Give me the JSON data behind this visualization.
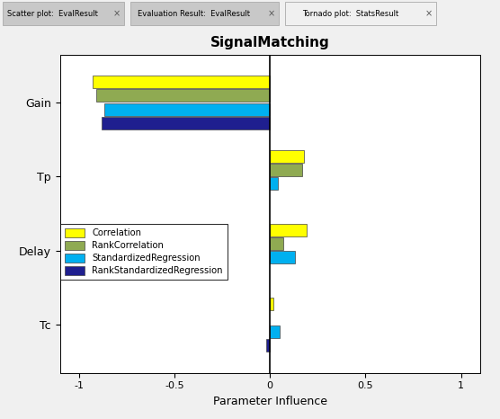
{
  "title": "SignalMatching",
  "xlabel": "Parameter Influence",
  "categories": [
    "Gain",
    "Tp",
    "Delay",
    "Tc"
  ],
  "series_order": [
    "Correlation",
    "RankCorrelation",
    "StandardizedRegression",
    "RankStandardizedRegression"
  ],
  "series": {
    "Correlation": [
      -0.93,
      0.18,
      0.19,
      0.02
    ],
    "RankCorrelation": [
      -0.91,
      0.17,
      0.07,
      0.0
    ],
    "StandardizedRegression": [
      -0.87,
      0.04,
      0.13,
      0.05
    ],
    "RankStandardizedRegression": [
      -0.88,
      0.0,
      0.0,
      -0.02
    ]
  },
  "colors": {
    "Correlation": "#ffff00",
    "RankCorrelation": "#8faa52",
    "StandardizedRegression": "#00b0f0",
    "RankStandardizedRegression": "#1f1f8f"
  },
  "xlim": [
    -1.1,
    1.1
  ],
  "bar_height": 0.17,
  "bar_spacing": 0.185,
  "background_color": "#f0f0f0",
  "tab_inactive_color": "#c8c8c8",
  "tab_active_color": "#f0f0f0",
  "tabs": [
    {
      "label": "Scatter plot:  EvalResult",
      "active": false
    },
    {
      "label": "Evaluation Result:  EvalResult",
      "active": false
    },
    {
      "label": "Tornado plot:  StatsResult",
      "active": true
    }
  ]
}
